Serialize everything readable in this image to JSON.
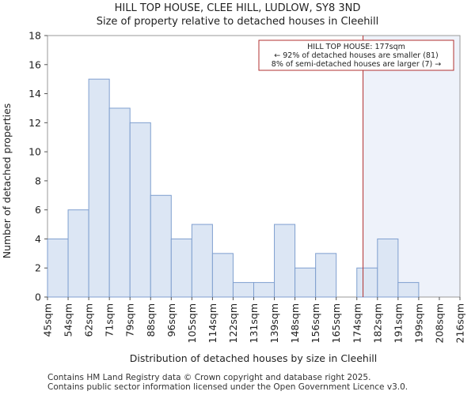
{
  "title_line1": "HILL TOP HOUSE, CLEE HILL, LUDLOW, SY8 3ND",
  "title_line2": "Size of property relative to detached houses in Cleehill",
  "footer_line1": "Contains HM Land Registry data © Crown copyright and database right 2025.",
  "footer_line2": "Contains public sector information licensed under the Open Government Licence v3.0.",
  "colors": {
    "bar_fill": "#dce6f4",
    "bar_stroke": "#7f9fcf",
    "highlight_fill": "#eef2fa",
    "marker": "#b03030"
  },
  "chart_data": {
    "type": "bar",
    "xlabel": "Distribution of detached houses by size in Cleehill",
    "ylabel": "Number of detached properties",
    "ylim": [
      0,
      18
    ],
    "yticks": [
      0,
      2,
      4,
      6,
      8,
      10,
      12,
      14,
      16,
      18
    ],
    "bin_edges": [
      "45sqm",
      "54sqm",
      "62sqm",
      "71sqm",
      "79sqm",
      "88sqm",
      "96sqm",
      "105sqm",
      "114sqm",
      "122sqm",
      "131sqm",
      "139sqm",
      "148sqm",
      "156sqm",
      "165sqm",
      "174sqm",
      "182sqm",
      "191sqm",
      "199sqm",
      "208sqm",
      "216sqm"
    ],
    "values": [
      4,
      6,
      15,
      13,
      12,
      7,
      4,
      5,
      3,
      1,
      1,
      5,
      2,
      3,
      0,
      2,
      4,
      1,
      0,
      0
    ],
    "marker_value_sqm": 177,
    "marker_position_bins": 15.3,
    "annotation": {
      "line1": "HILL TOP HOUSE: 177sqm",
      "line2": "← 92% of detached houses are smaller (81)",
      "line3": "8% of semi-detached houses are larger (7) →"
    }
  }
}
